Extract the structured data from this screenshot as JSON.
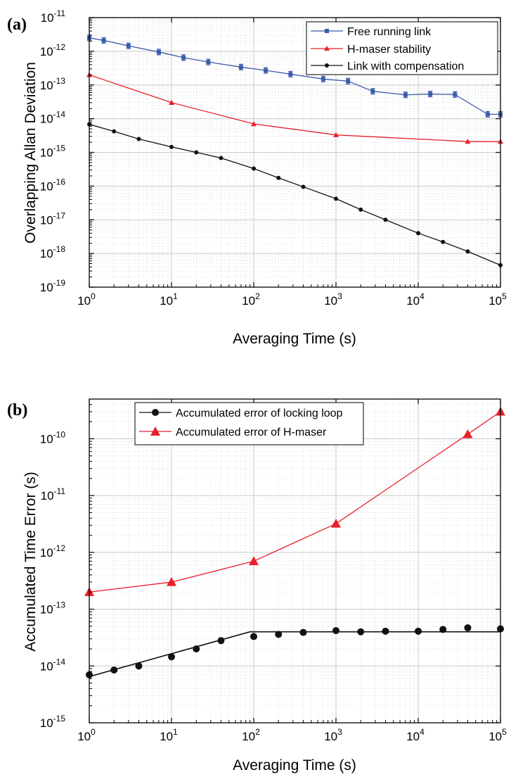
{
  "chart_data": [
    {
      "panel_label": "(a)",
      "type": "line",
      "xlabel": "Averaging Time (s)",
      "ylabel": "Overlapping Allan Deviation",
      "xscale": "log",
      "yscale": "log",
      "xlim": [
        1,
        100000
      ],
      "ylim": [
        1e-19,
        1e-11
      ],
      "grid": true,
      "legend_position": "top-right",
      "x_ticks": [
        {
          "v": 1,
          "base": "10",
          "exp": "0"
        },
        {
          "v": 10,
          "base": "10",
          "exp": "1"
        },
        {
          "v": 100,
          "base": "10",
          "exp": "2"
        },
        {
          "v": 1000,
          "base": "10",
          "exp": "3"
        },
        {
          "v": 10000,
          "base": "10",
          "exp": "4"
        },
        {
          "v": 100000,
          "base": "10",
          "exp": "5"
        }
      ],
      "y_ticks": [
        {
          "v": 1e-19,
          "base": "10",
          "exp": "-19"
        },
        {
          "v": 1e-18,
          "base": "10",
          "exp": "-18"
        },
        {
          "v": 1e-17,
          "base": "10",
          "exp": "-17"
        },
        {
          "v": 1e-16,
          "base": "10",
          "exp": "-16"
        },
        {
          "v": 1e-15,
          "base": "10",
          "exp": "-15"
        },
        {
          "v": 1e-14,
          "base": "10",
          "exp": "-14"
        },
        {
          "v": 1e-13,
          "base": "10",
          "exp": "-13"
        },
        {
          "v": 1e-12,
          "base": "10",
          "exp": "-12"
        },
        {
          "v": 1e-11,
          "base": "10",
          "exp": "-11"
        }
      ],
      "series": [
        {
          "name": "Free running link",
          "color": "#3b5bab",
          "marker": "square",
          "error_bars": true,
          "points": [
            [
              1,
              2.5e-12
            ],
            [
              1.5,
              2.1e-12
            ],
            [
              3,
              1.45e-12
            ],
            [
              7,
              9.5e-13
            ],
            [
              14,
              6.5e-13
            ],
            [
              28,
              4.8e-13
            ],
            [
              70,
              3.4e-13
            ],
            [
              140,
              2.7e-13
            ],
            [
              280,
              2.1e-13
            ],
            [
              700,
              1.5e-13
            ],
            [
              1400,
              1.3e-13
            ],
            [
              2800,
              6.5e-14
            ],
            [
              7000,
              5.1e-14
            ],
            [
              14000,
              5.4e-14
            ],
            [
              28000,
              5.2e-14
            ],
            [
              70000,
              1.35e-14
            ],
            [
              100000,
              1.35e-14
            ]
          ]
        },
        {
          "name": "H-maser stability",
          "color": "#e8202a",
          "marker": "triangle",
          "error_bars": false,
          "points": [
            [
              1,
              2e-13
            ],
            [
              10,
              3e-14
            ],
            [
              100,
              7e-15
            ],
            [
              1000,
              3.3e-15
            ],
            [
              40000,
              2.1e-15
            ],
            [
              100000,
              2.1e-15
            ]
          ]
        },
        {
          "name": "Link with compensation",
          "color": "#111111",
          "marker": "circle",
          "error_bars": false,
          "points": [
            [
              1,
              6.8e-15
            ],
            [
              2,
              4.2e-15
            ],
            [
              4,
              2.5e-15
            ],
            [
              10,
              1.45e-15
            ],
            [
              20,
              1e-15
            ],
            [
              40,
              6.8e-16
            ],
            [
              100,
              3.3e-16
            ],
            [
              200,
              1.75e-16
            ],
            [
              400,
              9.5e-17
            ],
            [
              1000,
              4.2e-17
            ],
            [
              2000,
              2e-17
            ],
            [
              4000,
              1e-17
            ],
            [
              10000,
              4e-18
            ],
            [
              20000,
              2.2e-18
            ],
            [
              40000,
              1.15e-18
            ],
            [
              100000,
              4.5e-19
            ]
          ]
        }
      ]
    },
    {
      "panel_label": "(b)",
      "type": "scatter",
      "xlabel": "Averaging Time (s)",
      "ylabel": "Accumulated Time Error (s)",
      "xscale": "log",
      "yscale": "log",
      "xlim": [
        1,
        100000
      ],
      "ylim": [
        1e-15,
        5e-10
      ],
      "grid": true,
      "legend_position": "top-left",
      "x_ticks": [
        {
          "v": 1,
          "base": "10",
          "exp": "0"
        },
        {
          "v": 10,
          "base": "10",
          "exp": "1"
        },
        {
          "v": 100,
          "base": "10",
          "exp": "2"
        },
        {
          "v": 1000,
          "base": "10",
          "exp": "3"
        },
        {
          "v": 10000,
          "base": "10",
          "exp": "4"
        },
        {
          "v": 100000,
          "base": "10",
          "exp": "5"
        }
      ],
      "y_ticks": [
        {
          "v": 1e-15,
          "base": "10",
          "exp": "-15"
        },
        {
          "v": 1e-14,
          "base": "10",
          "exp": "-14"
        },
        {
          "v": 1e-13,
          "base": "10",
          "exp": "-13"
        },
        {
          "v": 1e-12,
          "base": "10",
          "exp": "-12"
        },
        {
          "v": 1e-11,
          "base": "10",
          "exp": "-11"
        },
        {
          "v": 1e-10,
          "base": "10",
          "exp": "-10"
        }
      ],
      "series": [
        {
          "name": "Accumulated error of locking loop",
          "color": "#111111",
          "marker": "circle",
          "draw_line": false,
          "points": [
            [
              1,
              7e-15
            ],
            [
              2,
              8.5e-15
            ],
            [
              4,
              1e-14
            ],
            [
              10,
              1.45e-14
            ],
            [
              20,
              2e-14
            ],
            [
              40,
              2.8e-14
            ],
            [
              100,
              3.3e-14
            ],
            [
              200,
              3.6e-14
            ],
            [
              400,
              3.9e-14
            ],
            [
              1000,
              4.2e-14
            ],
            [
              2000,
              4e-14
            ],
            [
              4000,
              4.1e-14
            ],
            [
              10000,
              4.1e-14
            ],
            [
              20000,
              4.4e-14
            ],
            [
              40000,
              4.7e-14
            ],
            [
              100000,
              4.5e-14
            ]
          ]
        },
        {
          "name": "Accumulated error of H-maser",
          "color": "#e8202a",
          "marker": "triangle",
          "draw_line": true,
          "points": [
            [
              1,
              2e-13
            ],
            [
              10,
              3e-13
            ],
            [
              100,
              7e-13
            ],
            [
              1000,
              3.2e-12
            ],
            [
              40000,
              1.2e-10
            ],
            [
              100000,
              3e-10
            ]
          ]
        }
      ],
      "fit_line": {
        "color": "#111111",
        "points": [
          [
            1,
            6.5e-15
          ],
          [
            90,
            4e-14
          ],
          [
            100000,
            4e-14
          ]
        ]
      }
    }
  ]
}
